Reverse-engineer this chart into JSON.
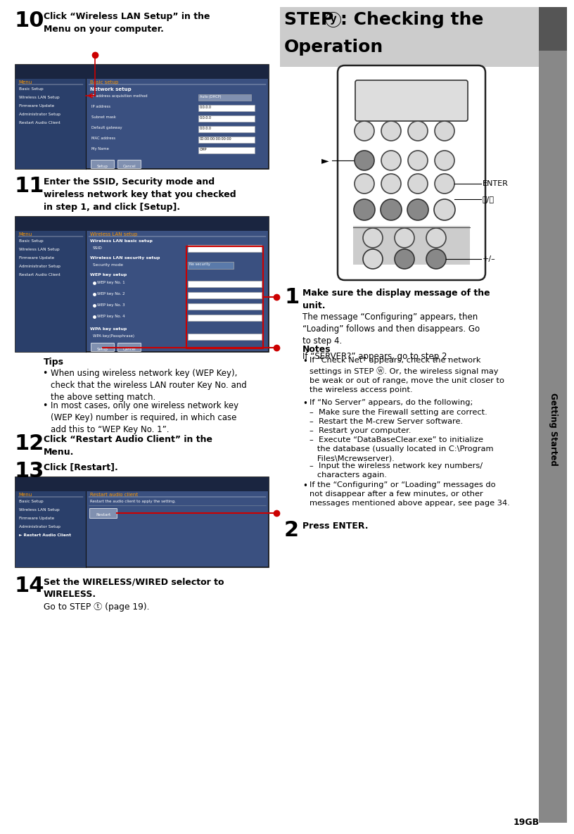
{
  "page_bg": "#ffffff",
  "sidebar_bg": "#888888",
  "sidebar_dark_bg": "#555555",
  "sidebar_text": "Getting Started",
  "step8_header_bg": "#cccccc",
  "page_number": "19GB",
  "step10_text": "Click “Wireless LAN Setup” in the\nMenu on your computer.",
  "step11_text": "Enter the SSID, Security mode and\nwireless network key that you checked\nin step 1, and click [Setup].",
  "tips_title": "Tips",
  "tips_bullet1": "When using wireless network key (WEP Key),\ncheck that the wireless LAN router Key No. and\nthe above setting match.",
  "tips_bullet2": "In most cases, only one wireless network key\n(WEP Key) number is required, in which case\nadd this to “WEP Key No. 1”.",
  "step12_text": "Click “Restart Audio Client” in the\nMenu.",
  "step13_text": "Click [Restart].",
  "step14_text": "Set the WIRELESS/WIRED selector to\nWIRELESS.",
  "goto_step8": "Go to STEP ⓣ (page 19).",
  "right_step1_bold": "Make sure the display message of the\nunit.",
  "right_step1_text1": "The message “Configuring” appears, then\n“Loading” follows and then disappears. Go\nto step 4.",
  "right_step1_text2": "If “SERVER?” appears, go to step 2.",
  "notes_title": "Notes",
  "note1": "If “Check Net” appears, check the network\nsettings in STEP ⓦ. Or, the wireless signal may\nbe weak or out of range, move the unit closer to\nthe wireless access point.",
  "note2a": "If “No Server” appears, do the following;",
  "note2b": "–  Make sure the Firewall setting are correct.",
  "note2c": "–  Restart the M-crew Server software.",
  "note2d": "–  Restart your computer.",
  "note2e": "–  Execute “DataBaseClear.exe” to initialize\n   the database (usually located in C:\\Program\n   Files\\Mcrewserver).",
  "note2f": "–  Input the wireless network key numbers/\n   characters again.",
  "note3": "If the “Configuring” or “Loading” messages do\nnot disappear after a few minutes, or other\nmessages mentioned above appear, see page 34.",
  "right_step2_bold": "Press ENTER.",
  "screen_bg": "#3a5080",
  "screen_dark": "#1a2540",
  "screen_menu_bg": "#2a3f6a",
  "arrow_color": "#cc0000",
  "dot_color": "#cc0000",
  "menu_orange": "#ff9900",
  "remote_body": "#f0f0f0",
  "remote_border": "#222222",
  "btn_light": "#d8d8d8",
  "btn_dark": "#888888"
}
